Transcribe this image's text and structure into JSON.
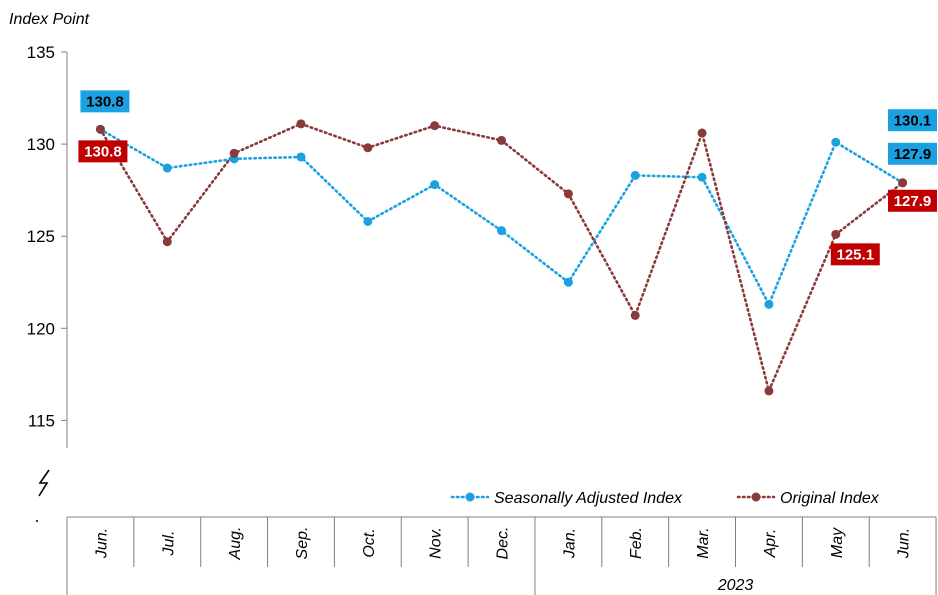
{
  "chart_data": {
    "type": "line",
    "ylabel": "Index Point",
    "ylim": [
      113.5,
      135
    ],
    "yticks": [
      115,
      120,
      125,
      130,
      135
    ],
    "categories": [
      "Jun.",
      "Jul.",
      "Aug.",
      "Sep.",
      "Oct.",
      "Nov.",
      "Dec.",
      "Jan.",
      "Feb.",
      "Mar.",
      "Apr.",
      "May",
      "Jun."
    ],
    "group_label": "2023",
    "legend_position": "bottom-right",
    "series": [
      {
        "name": "Seasonally Adjusted Index",
        "color": "#1BA1E2",
        "label_bg": "#1BA1E2",
        "label_fg": "#000000",
        "values": [
          130.8,
          128.7,
          129.2,
          129.3,
          125.8,
          127.8,
          125.3,
          122.5,
          128.3,
          128.2,
          121.3,
          130.1,
          127.9
        ],
        "data_labels": [
          {
            "index": 0,
            "text": "130.8"
          },
          {
            "index": 11,
            "text": "130.1"
          },
          {
            "index": 12,
            "text": "127.9"
          }
        ]
      },
      {
        "name": "Original Index",
        "color": "#8B3A3A",
        "label_bg": "#C00000",
        "label_fg": "#FFFFFF",
        "values": [
          130.8,
          124.7,
          129.5,
          131.1,
          129.8,
          131.0,
          130.2,
          127.3,
          120.7,
          130.6,
          116.6,
          125.1,
          127.9
        ],
        "data_labels": [
          {
            "index": 0,
            "text": "130.8"
          },
          {
            "index": 11,
            "text": "125.1"
          },
          {
            "index": 12,
            "text": "127.9"
          }
        ]
      }
    ]
  }
}
